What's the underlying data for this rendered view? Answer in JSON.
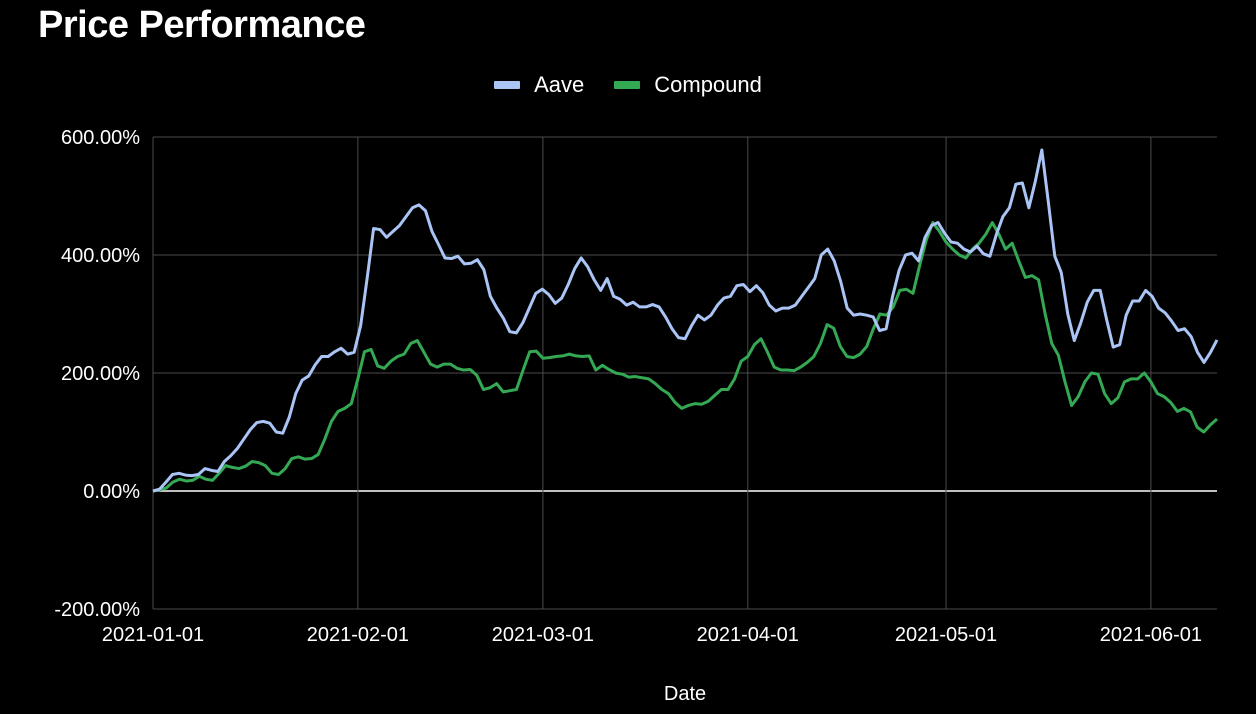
{
  "chart_data": {
    "type": "line",
    "title": "Price Performance",
    "xlabel": "Date",
    "ylabel": "",
    "ylim": [
      -200,
      600
    ],
    "y_ticks": [
      {
        "value": 600,
        "label": "600.00%"
      },
      {
        "value": 400,
        "label": "400.00%"
      },
      {
        "value": 200,
        "label": "200.00%"
      },
      {
        "value": 0,
        "label": "0.00%"
      },
      {
        "value": -200,
        "label": "-200.00%"
      }
    ],
    "x_ticks": [
      "2021-01-01",
      "2021-02-01",
      "2021-03-01",
      "2021-04-01",
      "2021-05-01",
      "2021-06-01"
    ],
    "grid": true,
    "legend_position": "top-center",
    "x_start": "2021-01-01",
    "x_end": "2021-06-11",
    "series": [
      {
        "name": "Aave",
        "color": "#a9c4f5",
        "values": [
          0,
          3,
          15,
          28,
          30,
          27,
          26,
          28,
          38,
          35,
          33,
          50,
          60,
          72,
          88,
          104,
          116,
          118,
          115,
          100,
          98,
          125,
          165,
          188,
          195,
          214,
          228,
          228,
          236,
          242,
          232,
          235,
          280,
          360,
          445,
          443,
          430,
          440,
          450,
          465,
          480,
          485,
          475,
          440,
          418,
          395,
          394,
          398,
          385,
          386,
          392,
          375,
          330,
          310,
          293,
          270,
          268,
          285,
          310,
          335,
          342,
          333,
          318,
          327,
          350,
          377,
          395,
          380,
          358,
          340,
          360,
          330,
          325,
          315,
          320,
          312,
          312,
          316,
          312,
          295,
          275,
          260,
          258,
          280,
          298,
          290,
          298,
          315,
          327,
          330,
          348,
          350,
          338,
          348,
          336,
          315,
          305,
          310,
          310,
          315,
          330,
          345,
          360,
          400,
          410,
          390,
          355,
          310,
          298,
          300,
          298,
          295,
          272,
          275,
          330,
          374,
          400,
          403,
          390,
          430,
          450,
          455,
          437,
          422,
          420,
          410,
          405,
          415,
          402,
          398,
          435,
          465,
          480,
          520,
          522,
          480,
          525,
          578,
          490,
          398,
          370,
          300,
          255,
          285,
          320,
          340,
          340,
          290,
          244,
          248,
          298,
          322,
          322,
          340,
          330,
          310,
          302,
          288,
          272,
          275,
          262,
          235,
          218,
          235,
          256
        ]
      },
      {
        "name": "Compound",
        "color": "#34a853",
        "values": [
          0,
          2,
          5,
          15,
          20,
          17,
          18,
          25,
          20,
          18,
          30,
          43,
          40,
          38,
          42,
          50,
          48,
          43,
          30,
          28,
          38,
          55,
          58,
          54,
          55,
          62,
          88,
          118,
          135,
          140,
          148,
          190,
          236,
          240,
          212,
          208,
          220,
          228,
          232,
          250,
          255,
          235,
          215,
          210,
          215,
          215,
          208,
          205,
          206,
          196,
          172,
          175,
          182,
          168,
          170,
          172,
          205,
          236,
          237,
          225,
          226,
          228,
          229,
          232,
          229,
          228,
          229,
          205,
          213,
          206,
          200,
          198,
          193,
          194,
          192,
          190,
          182,
          172,
          165,
          150,
          140,
          145,
          148,
          147,
          152,
          162,
          172,
          172,
          190,
          220,
          228,
          248,
          258,
          235,
          210,
          205,
          205,
          204,
          210,
          218,
          228,
          250,
          282,
          276,
          245,
          228,
          226,
          232,
          245,
          275,
          300,
          298,
          312,
          340,
          342,
          335,
          382,
          425,
          455,
          440,
          422,
          410,
          400,
          395,
          410,
          420,
          435,
          455,
          435,
          410,
          420,
          390,
          362,
          365,
          358,
          300,
          250,
          230,
          185,
          145,
          160,
          185,
          200,
          198,
          165,
          148,
          158,
          185,
          190,
          190,
          200,
          185,
          165,
          160,
          150,
          135,
          140,
          134,
          108,
          100,
          112,
          122
        ]
      }
    ]
  }
}
